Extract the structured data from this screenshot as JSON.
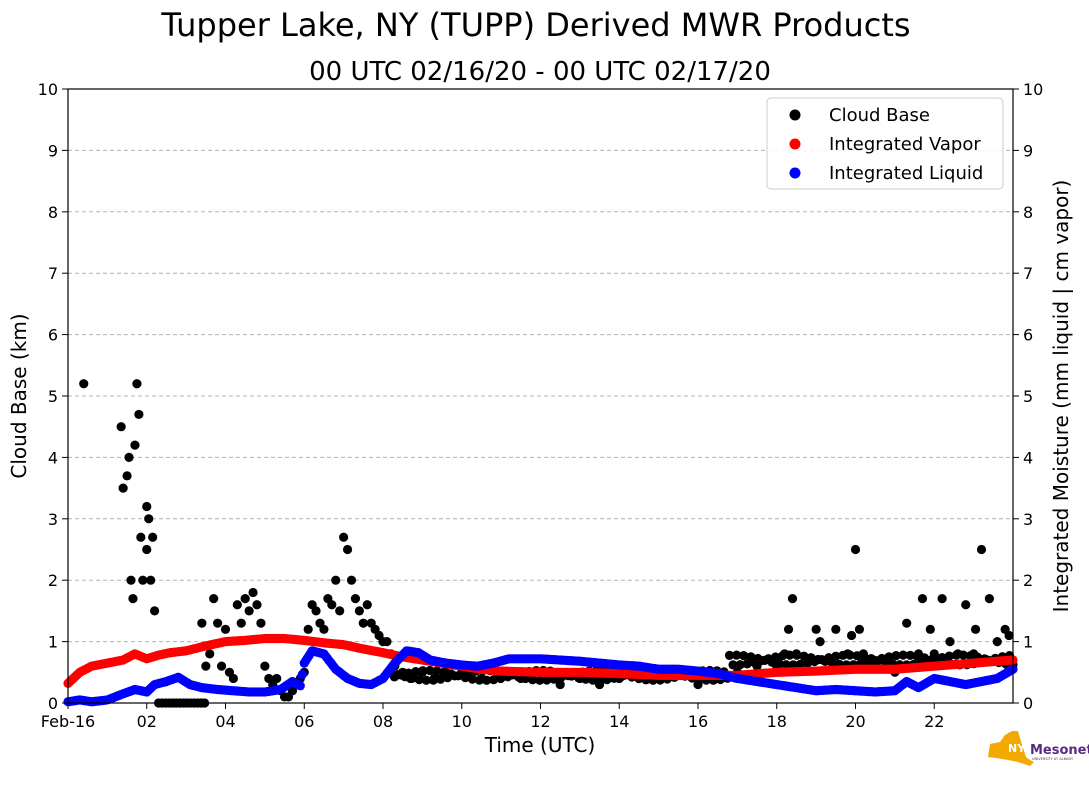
{
  "chart_data": {
    "type": "scatter",
    "title": "Tupper Lake, NY (TUPP) Derived MWR Products",
    "subtitle": "00 UTC 02/16/20 - 00 UTC 02/17/20",
    "xlabel": "Time (UTC)",
    "ylabel": "Cloud Base (km)",
    "y2label": "Integrated Moisture (mm liquid | cm vapor)",
    "xlim": [
      0,
      24
    ],
    "ylim": [
      0,
      10
    ],
    "y2lim": [
      0,
      10
    ],
    "x_ticks": [
      0,
      2,
      4,
      6,
      8,
      10,
      12,
      14,
      16,
      18,
      20,
      22
    ],
    "x_tick_labels": [
      "Feb-16",
      "02",
      "04",
      "06",
      "08",
      "10",
      "12",
      "14",
      "16",
      "18",
      "20",
      "22"
    ],
    "y_ticks": [
      0,
      1,
      2,
      3,
      4,
      5,
      6,
      7,
      8,
      9,
      10
    ],
    "y_tick_labels": [
      "0",
      "1",
      "2",
      "3",
      "4",
      "5",
      "6",
      "7",
      "8",
      "9",
      "10"
    ],
    "grid": true,
    "grid_style": "dashed horizontal",
    "legend_position": "top-right",
    "series": [
      {
        "name": "Cloud Base",
        "color": "#000000",
        "axis": "left",
        "x": [
          0.4,
          1.35,
          1.4,
          1.5,
          1.55,
          1.6,
          1.65,
          1.7,
          1.75,
          1.8,
          1.85,
          1.9,
          2.0,
          2.0,
          2.05,
          2.1,
          2.15,
          2.2,
          3.4,
          3.5,
          3.6,
          3.7,
          3.8,
          3.9,
          4.0,
          4.1,
          4.2,
          4.3,
          4.4,
          4.5,
          4.6,
          4.7,
          4.8,
          4.9,
          5.0,
          5.1,
          5.2,
          5.3,
          5.4,
          5.5,
          5.6,
          5.7,
          5.8,
          5.9,
          6.0,
          6.1,
          6.2,
          6.3,
          6.4,
          6.5,
          6.6,
          6.7,
          6.8,
          6.9,
          7.0,
          7.1,
          7.2,
          7.3,
          7.4,
          7.5,
          7.6,
          7.7,
          7.8,
          7.9,
          8.0,
          8.1,
          8.2,
          8.3,
          8.5,
          8.7,
          9.0,
          9.3,
          9.6,
          10.0,
          10.5,
          11.0,
          11.5,
          12.0,
          12.5,
          13.0,
          13.5,
          14.0,
          14.5,
          15.0,
          15.5,
          16.0,
          16.5,
          17.0,
          17.5,
          18.0,
          18.2,
          18.3,
          18.4,
          18.5,
          19.0,
          19.1,
          19.5,
          19.8,
          19.9,
          20.0,
          20.1,
          20.2,
          20.5,
          21.0,
          21.3,
          21.6,
          21.7,
          21.9,
          22.0,
          22.2,
          22.4,
          22.6,
          22.8,
          23.0,
          23.05,
          23.2,
          23.4,
          23.6,
          23.8,
          23.9
        ],
        "y": [
          5.2,
          4.5,
          3.5,
          3.7,
          4.0,
          2.0,
          1.7,
          4.2,
          5.2,
          4.7,
          2.7,
          2.0,
          2.5,
          3.2,
          3.0,
          2.0,
          2.7,
          1.5,
          1.3,
          0.6,
          0.8,
          1.7,
          1.3,
          0.6,
          1.2,
          0.5,
          0.4,
          1.6,
          1.3,
          1.7,
          1.5,
          1.8,
          1.6,
          1.3,
          0.6,
          0.4,
          0.3,
          0.4,
          0.2,
          0.1,
          0.1,
          0.2,
          0.3,
          0.4,
          0.5,
          1.2,
          1.6,
          1.5,
          1.3,
          1.2,
          1.7,
          1.6,
          2.0,
          1.5,
          2.7,
          2.5,
          2.0,
          1.7,
          1.5,
          1.3,
          1.6,
          1.3,
          1.2,
          1.1,
          1.0,
          1.0,
          0.8,
          0.6,
          0.5,
          0.4,
          0.5,
          0.4,
          0.5,
          0.5,
          0.4,
          0.5,
          0.4,
          0.5,
          0.3,
          0.4,
          0.3,
          0.4,
          0.5,
          0.4,
          0.5,
          0.3,
          0.4,
          0.5,
          0.6,
          0.6,
          0.8,
          1.2,
          1.7,
          0.8,
          1.2,
          1.0,
          1.2,
          0.8,
          1.1,
          2.5,
          1.2,
          0.8,
          0.6,
          0.5,
          1.3,
          0.8,
          1.7,
          1.2,
          0.8,
          1.7,
          1.0,
          0.8,
          1.6,
          0.8,
          1.2,
          2.5,
          1.7,
          1.0,
          1.2,
          1.1
        ],
        "dense_segments": [
          {
            "x": [
              2.3,
              3.5
            ],
            "y": 0.0
          },
          {
            "x": [
              8.2,
              16.8
            ],
            "y": 0.45
          },
          {
            "x": [
              16.8,
              24.0
            ],
            "y": 0.7
          }
        ]
      },
      {
        "name": "Integrated Vapor",
        "color": "#ff0000",
        "axis": "right",
        "x": [
          0.0,
          0.3,
          0.6,
          1.0,
          1.4,
          1.7,
          2.0,
          2.3,
          2.6,
          3.0,
          3.5,
          4.0,
          4.5,
          5.0,
          5.5,
          6.0,
          6.5,
          7.0,
          7.5,
          8.0,
          8.5,
          9.0,
          9.5,
          10.0,
          10.5,
          11.0,
          12.0,
          13.0,
          14.0,
          15.0,
          16.0,
          17.0,
          18.0,
          19.0,
          20.0,
          21.0,
          22.0,
          23.0,
          24.0
        ],
        "y": [
          0.32,
          0.5,
          0.6,
          0.65,
          0.7,
          0.8,
          0.72,
          0.78,
          0.82,
          0.85,
          0.93,
          1.0,
          1.02,
          1.05,
          1.05,
          1.02,
          0.98,
          0.95,
          0.88,
          0.82,
          0.75,
          0.7,
          0.65,
          0.6,
          0.55,
          0.52,
          0.5,
          0.5,
          0.48,
          0.45,
          0.45,
          0.45,
          0.5,
          0.52,
          0.55,
          0.55,
          0.6,
          0.65,
          0.7
        ]
      },
      {
        "name": "Integrated Liquid",
        "color": "#0000ff",
        "axis": "right",
        "x": [
          0.0,
          0.3,
          0.6,
          1.0,
          1.4,
          1.7,
          2.0,
          2.2,
          2.5,
          2.8,
          3.1,
          3.4,
          3.8,
          4.2,
          4.6,
          5.0,
          5.4,
          5.7,
          5.9,
          6.0,
          6.2,
          6.5,
          6.8,
          7.1,
          7.4,
          7.7,
          8.0,
          8.3,
          8.6,
          8.9,
          9.2,
          9.6,
          10.0,
          10.4,
          10.8,
          11.2,
          11.6,
          12.0,
          12.5,
          13.0,
          13.5,
          14.0,
          14.5,
          15.0,
          15.5,
          16.0,
          16.5,
          17.0,
          17.5,
          18.0,
          18.5,
          19.0,
          19.5,
          20.0,
          20.5,
          21.0,
          21.3,
          21.6,
          22.0,
          22.4,
          22.8,
          23.2,
          23.6,
          24.0
        ],
        "y": [
          0.02,
          0.05,
          0.02,
          0.05,
          0.15,
          0.22,
          0.18,
          0.3,
          0.35,
          0.42,
          0.3,
          0.25,
          0.22,
          0.2,
          0.18,
          0.18,
          0.22,
          0.35,
          0.28,
          0.65,
          0.85,
          0.8,
          0.55,
          0.4,
          0.32,
          0.3,
          0.4,
          0.65,
          0.85,
          0.82,
          0.7,
          0.65,
          0.62,
          0.6,
          0.65,
          0.72,
          0.72,
          0.72,
          0.7,
          0.68,
          0.65,
          0.62,
          0.6,
          0.55,
          0.55,
          0.52,
          0.48,
          0.4,
          0.35,
          0.3,
          0.25,
          0.2,
          0.22,
          0.2,
          0.18,
          0.2,
          0.35,
          0.25,
          0.4,
          0.35,
          0.3,
          0.35,
          0.4,
          0.55
        ]
      }
    ]
  },
  "logo": {
    "text": "Mesonet",
    "abbr": "NYS",
    "subtext": "UNIVERSITY AT ALBANY"
  }
}
